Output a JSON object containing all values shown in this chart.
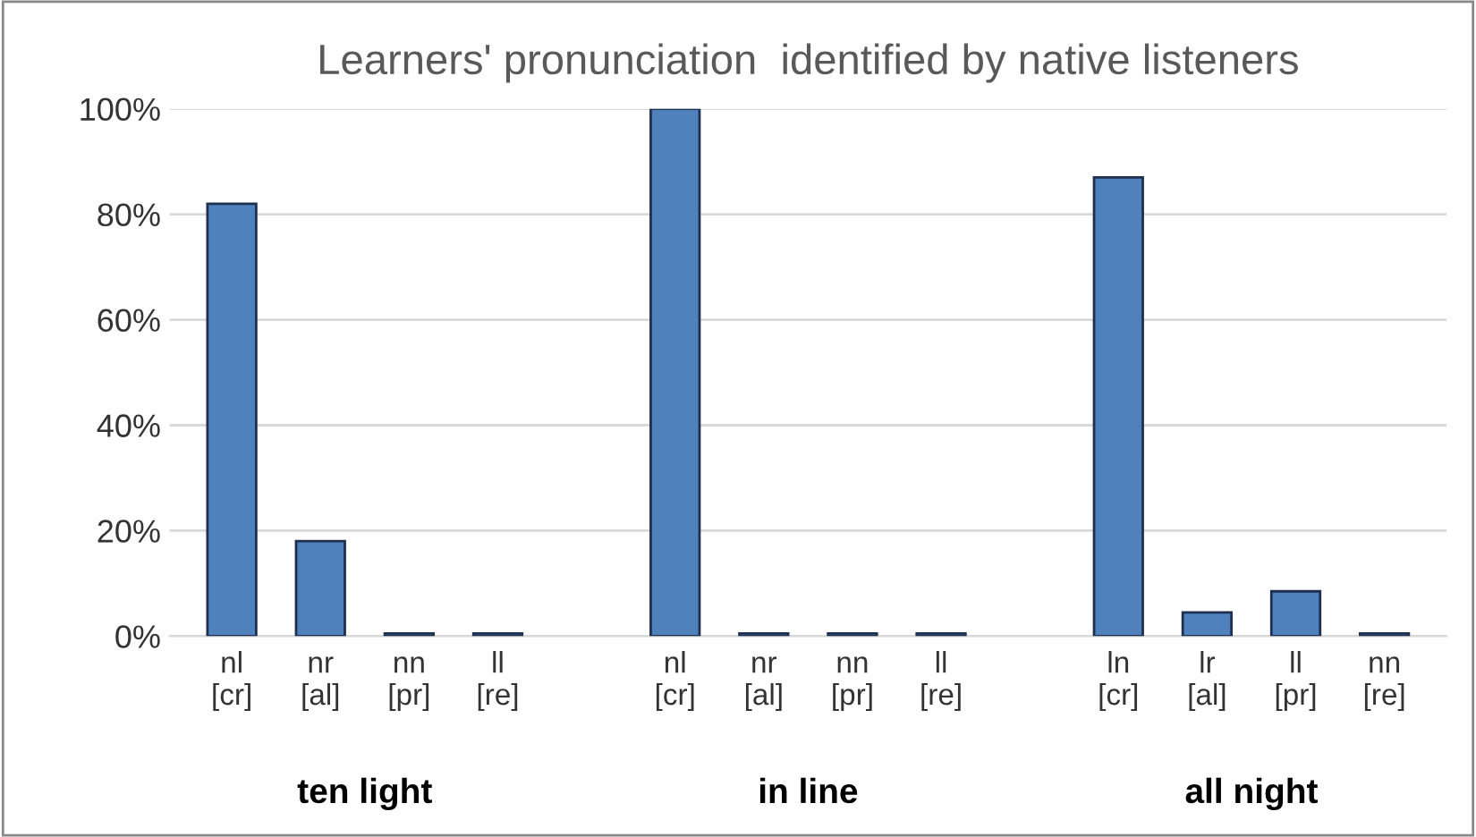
{
  "chart_data": {
    "type": "bar",
    "title": "Learners' pronunciation  identified by native listeners",
    "categories": [
      "nl\n[cr]",
      "nr\n[al]",
      "nn\n[pr]",
      "ll\n[re]",
      null,
      "nl\n[cr]",
      "nr\n[al]",
      "nn\n[pr]",
      "ll\n[re]",
      null,
      "ln\n[cr]",
      "lr\n[al]",
      "ll\n[pr]",
      "nn\n[re]"
    ],
    "values": [
      82,
      18,
      0.5,
      0.5,
      null,
      100,
      0.5,
      0.5,
      0.5,
      null,
      87,
      4.5,
      8.5,
      0.5
    ],
    "color": "#4f81bd",
    "ylim": [
      0,
      100
    ],
    "yticks": [
      {
        "value": 0,
        "label": "0%"
      },
      {
        "value": 20,
        "label": "20%"
      },
      {
        "value": 40,
        "label": "40%"
      },
      {
        "value": 60,
        "label": "60%"
      },
      {
        "value": 80,
        "label": "80%"
      },
      {
        "value": 100,
        "label": "100%"
      }
    ],
    "grid": "y",
    "annotations": [
      "ten light",
      "in line",
      "all night"
    ]
  }
}
